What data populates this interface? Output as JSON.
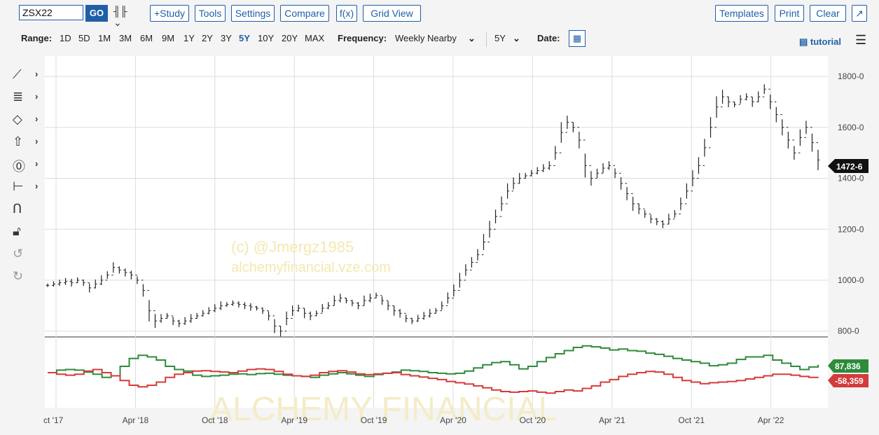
{
  "toolbar": {
    "symbol": "ZSX22",
    "go_label": "GO",
    "buttons": [
      "+Study",
      "Tools",
      "Settings",
      "Compare",
      "f(x)",
      "Grid View"
    ],
    "right_buttons": [
      "Templates",
      "Print",
      "Clear"
    ]
  },
  "rangebar": {
    "range_label": "Range:",
    "ranges": [
      "1D",
      "5D",
      "1M",
      "3M",
      "6M",
      "9M",
      "1Y",
      "2Y",
      "3Y",
      "5Y",
      "10Y",
      "20Y",
      "MAX"
    ],
    "active_range": "5Y",
    "frequency_label": "Frequency:",
    "frequency_value": "Weekly Nearby",
    "period_value": "5Y",
    "date_label": "Date:",
    "tutorial_label": "tutorial"
  },
  "tools": [
    "line-tool-icon",
    "fibonacci-tool-icon",
    "shape-tool-icon",
    "arrow-tool-icon",
    "annotation-tool-icon",
    "measure-tool-icon",
    "magnet-icon",
    "lock-icon",
    "undo-icon",
    "redo-icon"
  ],
  "watermark": {
    "line1": "(c) @Jmergz1985",
    "line2": "alchemyfinancial.vze.com",
    "bottom": "ALCHEMY FINANCIAL"
  },
  "chart_data": {
    "type": "line",
    "price_ticks": [
      "1800-0",
      "1600-0",
      "1400-0",
      "1200-0",
      "1000-0",
      "800-0"
    ],
    "price_ylim": [
      780,
      1880
    ],
    "last_price_label": "1472-6",
    "x_ticks": [
      "ct '17",
      "Apr '18",
      "Oct '18",
      "Apr '19",
      "Oct '19",
      "Apr '20",
      "Oct '20",
      "Apr '21",
      "Oct '21",
      "Apr '22"
    ],
    "price_series": [
      980,
      985,
      990,
      995,
      990,
      1000,
      990,
      970,
      985,
      1000,
      1020,
      1050,
      1040,
      1030,
      1020,
      1000,
      960,
      880,
      840,
      850,
      860,
      840,
      830,
      840,
      850,
      860,
      870,
      880,
      890,
      900,
      905,
      910,
      905,
      900,
      895,
      890,
      880,
      860,
      820,
      800,
      850,
      880,
      890,
      870,
      860,
      870,
      890,
      900,
      920,
      930,
      920,
      910,
      900,
      920,
      930,
      940,
      920,
      900,
      880,
      870,
      850,
      840,
      850,
      860,
      870,
      880,
      900,
      930,
      960,
      1000,
      1040,
      1070,
      1100,
      1150,
      1200,
      1250,
      1300,
      1350,
      1380,
      1400,
      1410,
      1420,
      1430,
      1440,
      1450,
      1500,
      1580,
      1620,
      1600,
      1550,
      1450,
      1400,
      1420,
      1440,
      1450,
      1420,
      1380,
      1340,
      1300,
      1280,
      1260,
      1240,
      1230,
      1220,
      1240,
      1260,
      1300,
      1350,
      1400,
      1450,
      1520,
      1600,
      1680,
      1720,
      1700,
      1690,
      1710,
      1720,
      1700,
      1720,
      1750,
      1700,
      1650,
      1600,
      1550,
      1500,
      1560,
      1600,
      1540,
      1472
    ],
    "series": [
      {
        "name": "87,836",
        "color": "#2e8b3a",
        "values": [
          0,
          8,
          10,
          8,
          2,
          -5,
          -15,
          -10,
          20,
          45,
          55,
          50,
          40,
          20,
          10,
          5,
          -8,
          -12,
          -10,
          -8,
          -5,
          -4,
          -6,
          -3,
          -2,
          -5,
          -8,
          -10,
          -12,
          -15,
          -8,
          -4,
          0,
          -4,
          -8,
          -12,
          -6,
          -2,
          2,
          8,
          6,
          4,
          0,
          -2,
          -4,
          -2,
          5,
          15,
          25,
          32,
          35,
          25,
          12,
          20,
          35,
          48,
          60,
          70,
          80,
          85,
          82,
          78,
          72,
          75,
          70,
          68,
          62,
          58,
          52,
          45,
          40,
          35,
          30,
          22,
          25,
          30,
          42,
          50,
          50,
          55,
          40,
          30,
          20,
          10,
          18,
          25
        ]
      },
      {
        "name": "-58,359",
        "color": "#d43b3b",
        "values": [
          0,
          -5,
          -8,
          -5,
          5,
          10,
          0,
          -10,
          -25,
          -40,
          -45,
          -40,
          -30,
          -15,
          -5,
          0,
          5,
          6,
          4,
          2,
          0,
          5,
          10,
          12,
          10,
          4,
          -5,
          -10,
          -12,
          -8,
          0,
          4,
          6,
          2,
          -4,
          -6,
          -4,
          -2,
          0,
          -6,
          -10,
          -14,
          -18,
          -22,
          -28,
          -32,
          -36,
          -42,
          -48,
          -55,
          -60,
          -62,
          -60,
          -58,
          -62,
          -65,
          -60,
          -55,
          -58,
          -50,
          -42,
          -30,
          -22,
          -12,
          -5,
          0,
          4,
          2,
          -5,
          -15,
          -25,
          -30,
          -35,
          -32,
          -30,
          -28,
          -25,
          -20,
          -15,
          -10,
          -5,
          -5,
          -8,
          -12,
          -15,
          -14
        ]
      }
    ],
    "volume_labels": [
      "87,836",
      "-58,359"
    ]
  }
}
